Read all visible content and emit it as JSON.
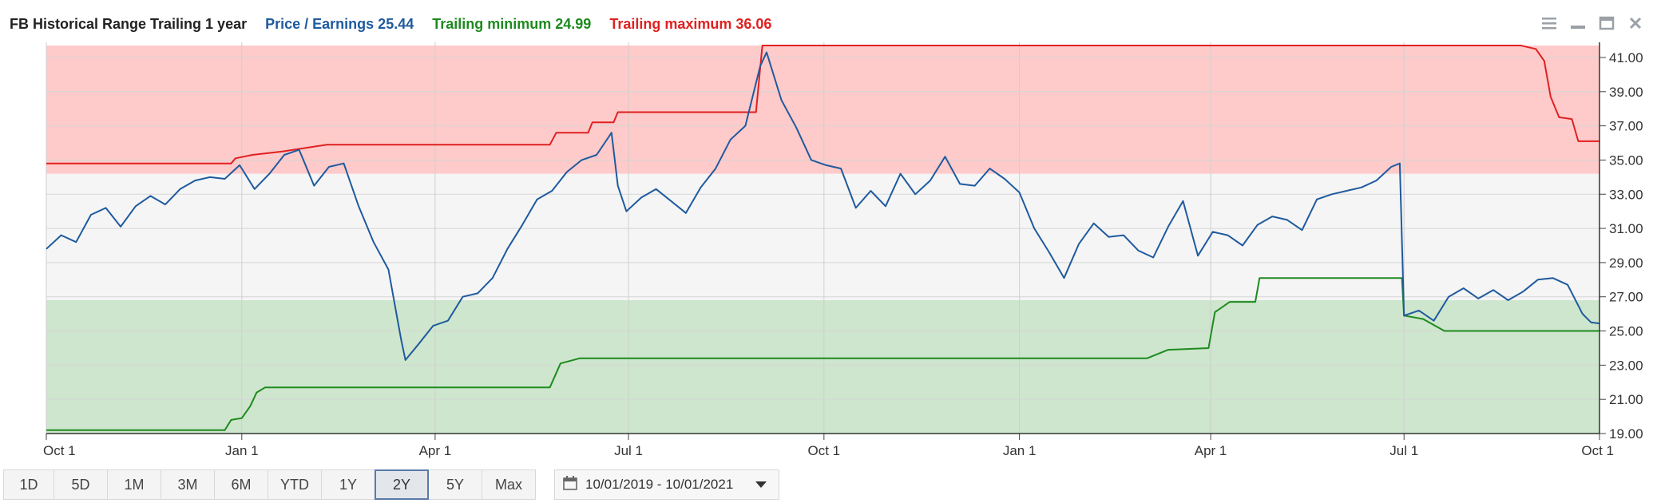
{
  "legend": {
    "ticker": "FB Historical Range Trailing 1 year",
    "pe": "Price / Earnings 25.44",
    "min": "Trailing minimum 24.99",
    "max": "Trailing maximum 36.06"
  },
  "range_buttons": [
    "1D",
    "5D",
    "1M",
    "3M",
    "6M",
    "YTD",
    "1Y",
    "2Y",
    "5Y",
    "Max"
  ],
  "active_range": "2Y",
  "date_range": "10/01/2019 - 10/01/2021",
  "icons": [
    "menu-icon",
    "minimize-icon",
    "maximize-icon",
    "close-icon",
    "calendar-icon",
    "chevron-down-icon"
  ],
  "chart_data": {
    "type": "line",
    "x_tick_labels": [
      "Oct 1",
      "Jan 1",
      "Apr 1",
      "Jul 1",
      "Oct 1",
      "Jan 1",
      "Apr 1",
      "Jul 1",
      "Oct 1"
    ],
    "x_range": [
      "2019-10-01",
      "2021-10-01"
    ],
    "y_ticks": [
      "19.00",
      "21.00",
      "23.00",
      "25.00",
      "27.00",
      "29.00",
      "31.00",
      "33.00",
      "35.00",
      "37.00",
      "39.00",
      "41.00"
    ],
    "ylim": [
      19,
      41.7
    ],
    "bands": [
      {
        "name": "low",
        "from": 19,
        "to": 26.8,
        "color": "#cde6cd"
      },
      {
        "name": "mid",
        "from": 26.8,
        "to": 34.2,
        "color": "#f5f5f5"
      },
      {
        "name": "high",
        "from": 34.2,
        "to": 41.7,
        "color": "#ffcaca"
      }
    ],
    "series": [
      {
        "name": "Price / Earnings",
        "color": "#1f5a9e",
        "points": [
          [
            "2019-10-01",
            29.8
          ],
          [
            "2019-10-08",
            30.6
          ],
          [
            "2019-10-15",
            30.2
          ],
          [
            "2019-10-22",
            31.8
          ],
          [
            "2019-10-29",
            32.2
          ],
          [
            "2019-11-05",
            31.1
          ],
          [
            "2019-11-12",
            32.3
          ],
          [
            "2019-11-19",
            32.9
          ],
          [
            "2019-11-26",
            32.4
          ],
          [
            "2019-12-03",
            33.3
          ],
          [
            "2019-12-10",
            33.8
          ],
          [
            "2019-12-17",
            34.0
          ],
          [
            "2019-12-24",
            33.9
          ],
          [
            "2019-12-31",
            34.7
          ],
          [
            "2020-01-07",
            33.3
          ],
          [
            "2020-01-14",
            34.2
          ],
          [
            "2020-01-21",
            35.3
          ],
          [
            "2020-01-28",
            35.6
          ],
          [
            "2020-02-04",
            33.5
          ],
          [
            "2020-02-11",
            34.6
          ],
          [
            "2020-02-18",
            34.8
          ],
          [
            "2020-02-25",
            32.3
          ],
          [
            "2020-03-03",
            30.2
          ],
          [
            "2020-03-10",
            28.6
          ],
          [
            "2020-03-16",
            24.5
          ],
          [
            "2020-03-18",
            23.3
          ],
          [
            "2020-03-24",
            24.2
          ],
          [
            "2020-03-31",
            25.3
          ],
          [
            "2020-04-07",
            25.6
          ],
          [
            "2020-04-14",
            27.0
          ],
          [
            "2020-04-21",
            27.2
          ],
          [
            "2020-04-28",
            28.1
          ],
          [
            "2020-05-05",
            29.8
          ],
          [
            "2020-05-12",
            31.2
          ],
          [
            "2020-05-19",
            32.7
          ],
          [
            "2020-05-26",
            33.2
          ],
          [
            "2020-06-02",
            34.3
          ],
          [
            "2020-06-09",
            35.0
          ],
          [
            "2020-06-16",
            35.3
          ],
          [
            "2020-06-23",
            36.6
          ],
          [
            "2020-06-26",
            33.5
          ],
          [
            "2020-06-30",
            32.0
          ],
          [
            "2020-07-07",
            32.8
          ],
          [
            "2020-07-14",
            33.3
          ],
          [
            "2020-07-21",
            32.6
          ],
          [
            "2020-07-28",
            31.9
          ],
          [
            "2020-08-04",
            33.4
          ],
          [
            "2020-08-11",
            34.5
          ],
          [
            "2020-08-18",
            36.2
          ],
          [
            "2020-08-25",
            37.0
          ],
          [
            "2020-09-01",
            40.5
          ],
          [
            "2020-09-04",
            41.3
          ],
          [
            "2020-09-11",
            38.5
          ],
          [
            "2020-09-18",
            36.9
          ],
          [
            "2020-09-25",
            35.0
          ],
          [
            "2020-10-02",
            34.7
          ],
          [
            "2020-10-09",
            34.5
          ],
          [
            "2020-10-16",
            32.2
          ],
          [
            "2020-10-23",
            33.2
          ],
          [
            "2020-10-30",
            32.3
          ],
          [
            "2020-11-06",
            34.2
          ],
          [
            "2020-11-13",
            33.0
          ],
          [
            "2020-11-20",
            33.8
          ],
          [
            "2020-11-27",
            35.2
          ],
          [
            "2020-12-04",
            33.6
          ],
          [
            "2020-12-11",
            33.5
          ],
          [
            "2020-12-18",
            34.5
          ],
          [
            "2020-12-25",
            33.9
          ],
          [
            "2021-01-01",
            33.1
          ],
          [
            "2021-01-08",
            31.0
          ],
          [
            "2021-01-15",
            29.6
          ],
          [
            "2021-01-22",
            28.1
          ],
          [
            "2021-01-29",
            30.1
          ],
          [
            "2021-02-05",
            31.3
          ],
          [
            "2021-02-12",
            30.5
          ],
          [
            "2021-02-19",
            30.6
          ],
          [
            "2021-02-26",
            29.7
          ],
          [
            "2021-03-05",
            29.3
          ],
          [
            "2021-03-12",
            31.1
          ],
          [
            "2021-03-19",
            32.6
          ],
          [
            "2021-03-26",
            29.4
          ],
          [
            "2021-04-02",
            30.8
          ],
          [
            "2021-04-09",
            30.6
          ],
          [
            "2021-04-16",
            30.0
          ],
          [
            "2021-04-23",
            31.2
          ],
          [
            "2021-04-30",
            31.7
          ],
          [
            "2021-05-07",
            31.5
          ],
          [
            "2021-05-14",
            30.9
          ],
          [
            "2021-05-21",
            32.7
          ],
          [
            "2021-05-28",
            33.0
          ],
          [
            "2021-06-04",
            33.2
          ],
          [
            "2021-06-11",
            33.4
          ],
          [
            "2021-06-18",
            33.8
          ],
          [
            "2021-06-25",
            34.6
          ],
          [
            "2021-06-29",
            34.8
          ],
          [
            "2021-07-01",
            25.9
          ],
          [
            "2021-07-08",
            26.2
          ],
          [
            "2021-07-15",
            25.6
          ],
          [
            "2021-07-22",
            27.0
          ],
          [
            "2021-07-29",
            27.5
          ],
          [
            "2021-08-05",
            26.9
          ],
          [
            "2021-08-12",
            27.4
          ],
          [
            "2021-08-19",
            26.8
          ],
          [
            "2021-08-26",
            27.3
          ],
          [
            "2021-09-02",
            28.0
          ],
          [
            "2021-09-09",
            28.1
          ],
          [
            "2021-09-16",
            27.7
          ],
          [
            "2021-09-23",
            26.0
          ],
          [
            "2021-09-27",
            25.5
          ],
          [
            "2021-10-01",
            25.44
          ]
        ]
      },
      {
        "name": "Trailing minimum",
        "color": "#1e8a1e",
        "points": [
          [
            "2019-10-01",
            19.2
          ],
          [
            "2019-12-24",
            19.2
          ],
          [
            "2019-12-27",
            19.8
          ],
          [
            "2020-01-01",
            19.9
          ],
          [
            "2020-01-05",
            20.6
          ],
          [
            "2020-01-08",
            21.4
          ],
          [
            "2020-01-12",
            21.7
          ],
          [
            "2020-05-25",
            21.7
          ],
          [
            "2020-05-30",
            23.1
          ],
          [
            "2020-06-08",
            23.4
          ],
          [
            "2021-03-02",
            23.4
          ],
          [
            "2021-03-12",
            23.9
          ],
          [
            "2021-03-31",
            24.0
          ],
          [
            "2021-04-03",
            26.1
          ],
          [
            "2021-04-10",
            26.7
          ],
          [
            "2021-04-22",
            26.7
          ],
          [
            "2021-04-24",
            28.1
          ],
          [
            "2021-06-30",
            28.1
          ],
          [
            "2021-07-01",
            25.9
          ],
          [
            "2021-07-10",
            25.7
          ],
          [
            "2021-07-20",
            25.0
          ],
          [
            "2021-10-01",
            25.0
          ]
        ]
      },
      {
        "name": "Trailing maximum",
        "color": "#e02020",
        "points": [
          [
            "2019-10-01",
            34.8
          ],
          [
            "2019-12-27",
            34.8
          ],
          [
            "2019-12-29",
            35.1
          ],
          [
            "2020-01-06",
            35.3
          ],
          [
            "2020-01-20",
            35.5
          ],
          [
            "2020-02-10",
            35.9
          ],
          [
            "2020-05-25",
            35.9
          ],
          [
            "2020-05-28",
            36.6
          ],
          [
            "2020-06-12",
            36.6
          ],
          [
            "2020-06-14",
            37.2
          ],
          [
            "2020-06-24",
            37.2
          ],
          [
            "2020-06-26",
            37.8
          ],
          [
            "2020-08-30",
            37.8
          ],
          [
            "2020-09-02",
            41.7
          ],
          [
            "2021-08-25",
            41.7
          ],
          [
            "2021-09-01",
            41.5
          ],
          [
            "2021-09-05",
            40.8
          ],
          [
            "2021-09-08",
            38.7
          ],
          [
            "2021-09-12",
            37.5
          ],
          [
            "2021-09-18",
            37.4
          ],
          [
            "2021-09-21",
            36.1
          ],
          [
            "2021-10-01",
            36.1
          ]
        ]
      }
    ],
    "grid": true,
    "legend_position": "top-left"
  }
}
